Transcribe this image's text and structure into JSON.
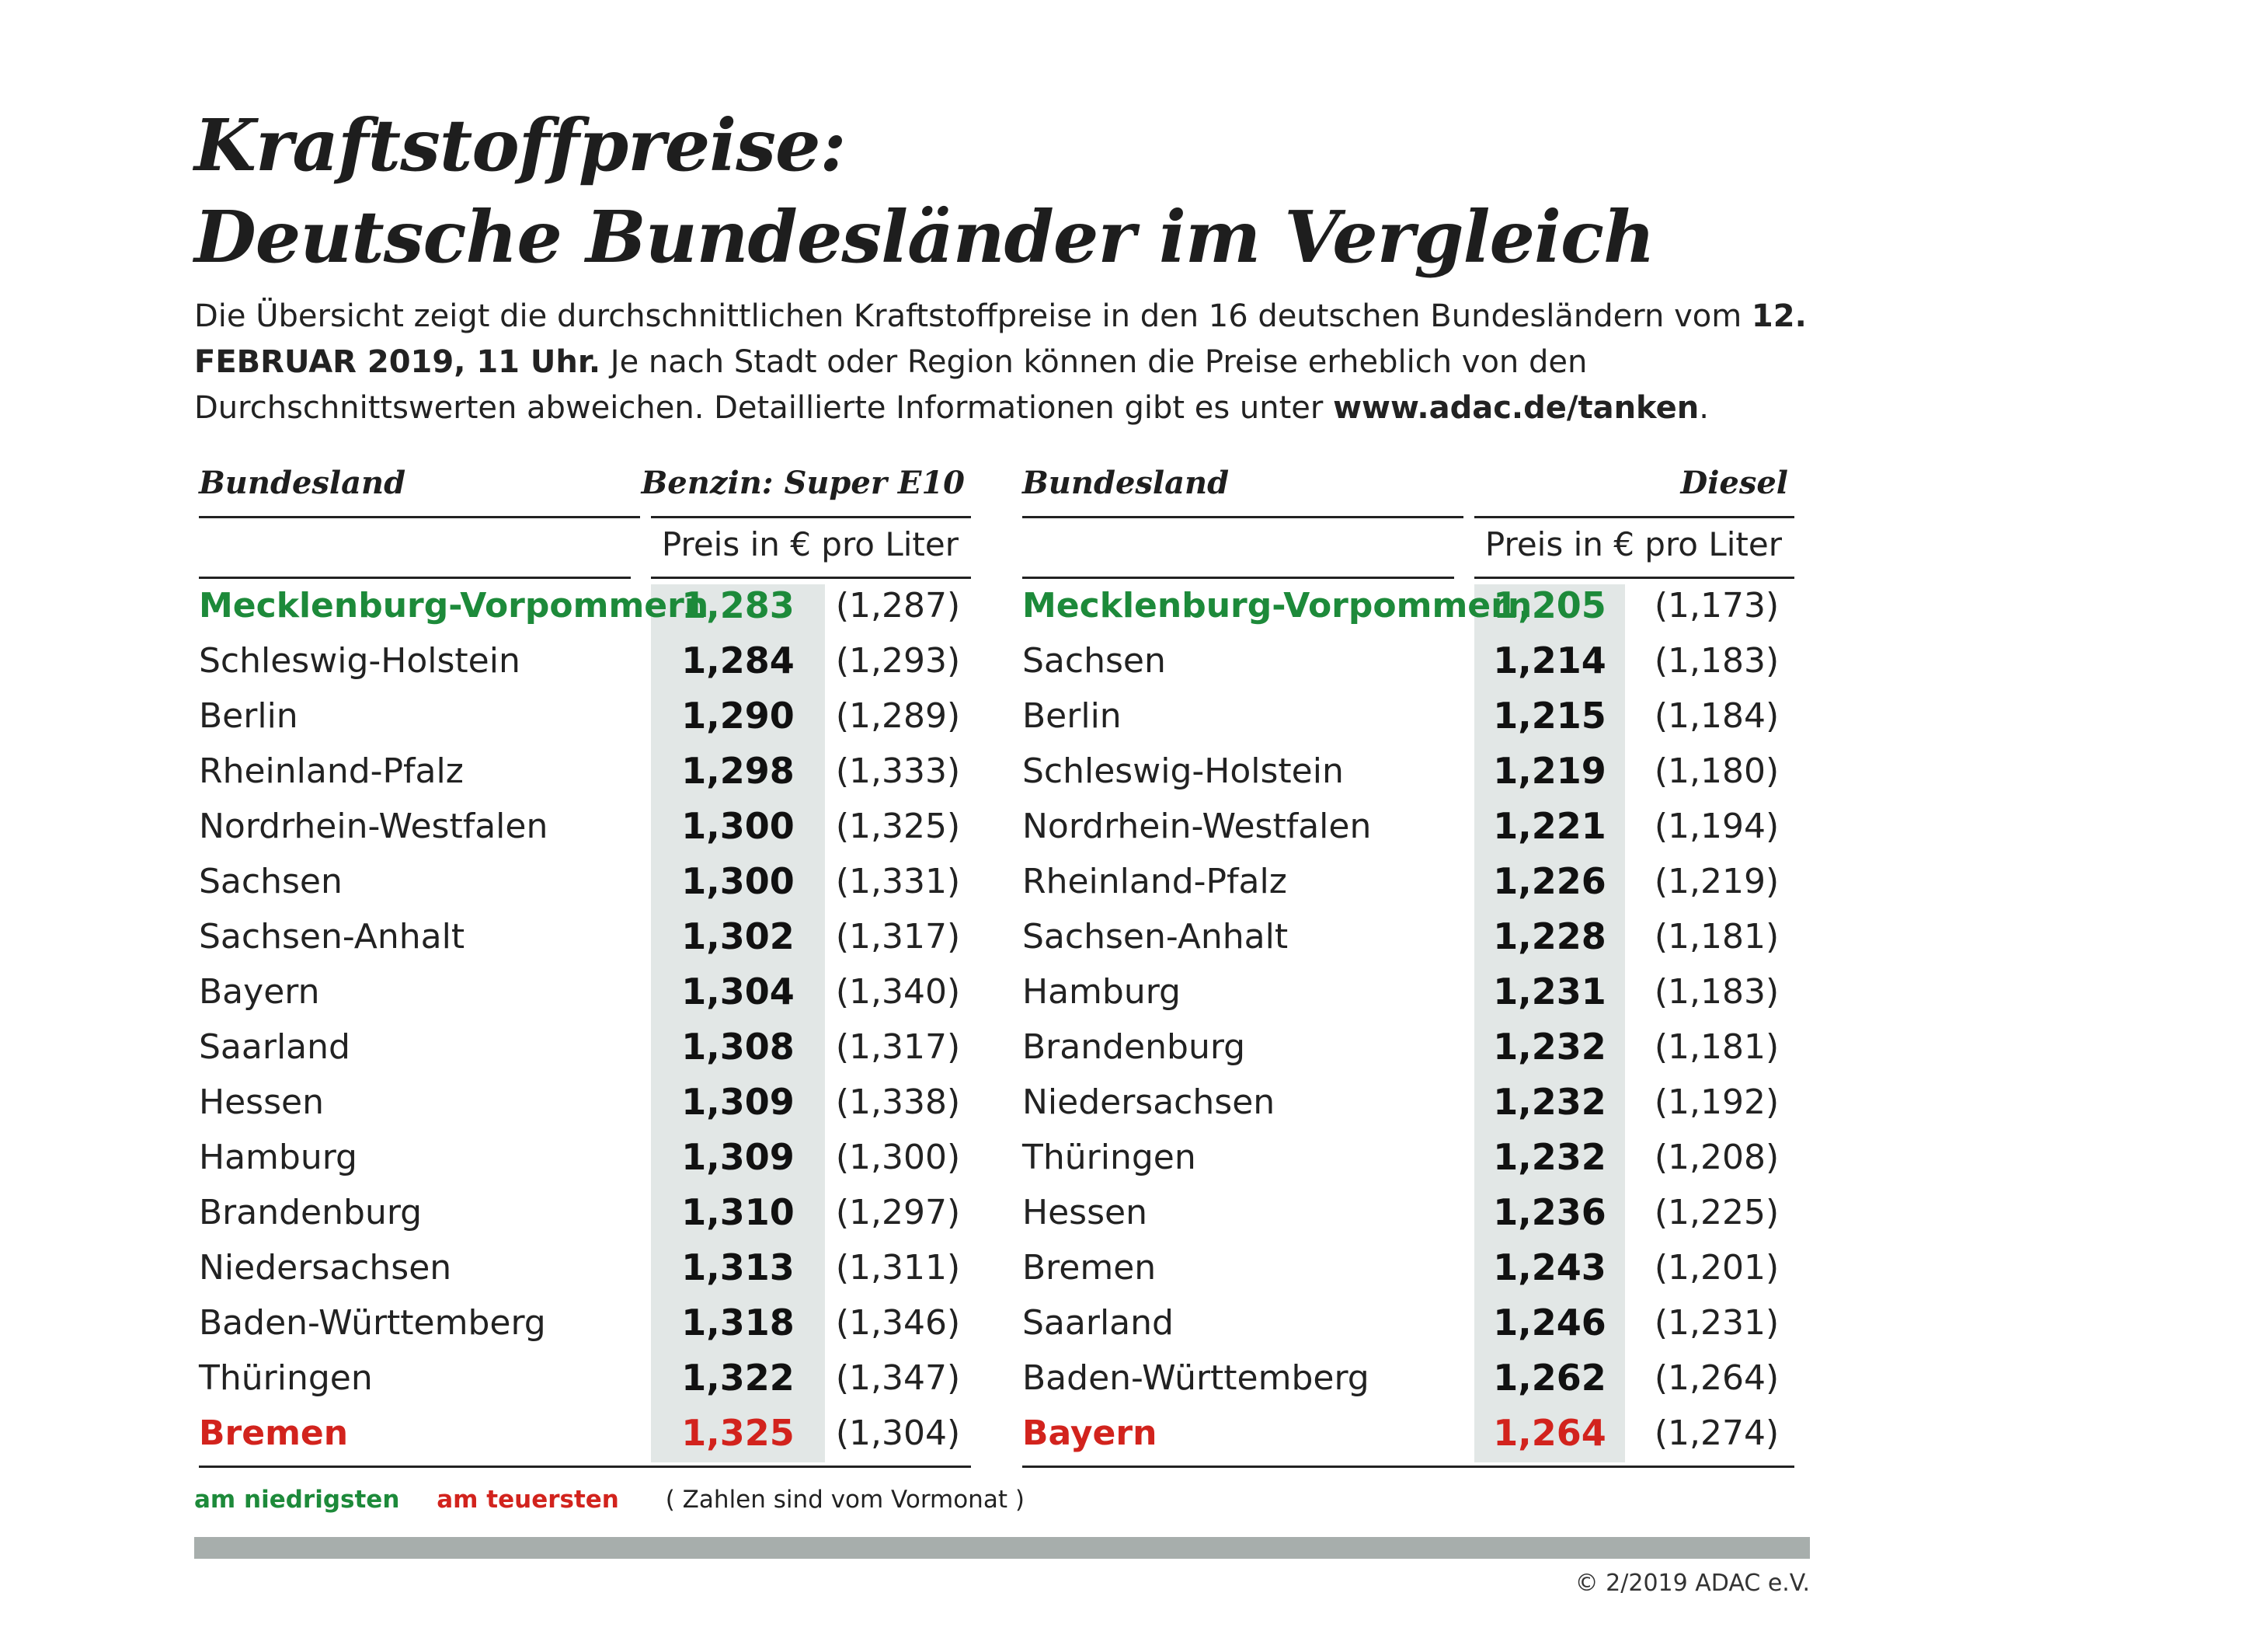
{
  "title": {
    "line1": "Kraftstoffpreise:",
    "line2": "Deutsche Bundesländer im Vergleich"
  },
  "intro": {
    "part1": "Die Übersicht zeigt die durchschnittlichen Kraftstoffpreise in den 16 deutschen Bundesländern vom ",
    "date": "12. FEBRUAR 2019, 11 Uhr.",
    "part2": " Je nach Stadt oder Region können die Preise erheblich von den Durchschnittswerten abweichen. Detaillierte Informationen gibt es unter ",
    "link": "www.adac.de/tanken",
    "part3": "."
  },
  "benzin": {
    "header_land": "Bundesland",
    "header_fuel": "Benzin:  Super E10",
    "unit": "Preis in € pro Liter",
    "rows": [
      {
        "land": "Mecklenburg-Vorpommern",
        "price": "1,283",
        "prev": "(1,287)",
        "status": "lowest"
      },
      {
        "land": "Schleswig-Holstein",
        "price": "1,284",
        "prev": "(1,293)",
        "status": ""
      },
      {
        "land": "Berlin",
        "price": "1,290",
        "prev": "(1,289)",
        "status": ""
      },
      {
        "land": "Rheinland-Pfalz",
        "price": "1,298",
        "prev": "(1,333)",
        "status": ""
      },
      {
        "land": "Nordrhein-Westfalen",
        "price": "1,300",
        "prev": "(1,325)",
        "status": ""
      },
      {
        "land": "Sachsen",
        "price": "1,300",
        "prev": "(1,331)",
        "status": ""
      },
      {
        "land": "Sachsen-Anhalt",
        "price": "1,302",
        "prev": "(1,317)",
        "status": ""
      },
      {
        "land": "Bayern",
        "price": "1,304",
        "prev": "(1,340)",
        "status": ""
      },
      {
        "land": "Saarland",
        "price": "1,308",
        "prev": "(1,317)",
        "status": ""
      },
      {
        "land": "Hessen",
        "price": "1,309",
        "prev": "(1,338)",
        "status": ""
      },
      {
        "land": "Hamburg",
        "price": "1,309",
        "prev": "(1,300)",
        "status": ""
      },
      {
        "land": "Brandenburg",
        "price": "1,310",
        "prev": "(1,297)",
        "status": ""
      },
      {
        "land": "Niedersachsen",
        "price": "1,313",
        "prev": "(1,311)",
        "status": ""
      },
      {
        "land": "Baden-Württemberg",
        "price": "1,318",
        "prev": "(1,346)",
        "status": ""
      },
      {
        "land": "Thüringen",
        "price": "1,322",
        "prev": "(1,347)",
        "status": ""
      },
      {
        "land": "Bremen",
        "price": "1,325",
        "prev": "(1,304)",
        "status": "highest"
      }
    ]
  },
  "diesel": {
    "header_land": "Bundesland",
    "header_fuel": "Diesel",
    "unit": "Preis in € pro Liter",
    "rows": [
      {
        "land": "Mecklenburg-Vorpommern",
        "price": "1,205",
        "prev": "(1,173)",
        "status": "lowest"
      },
      {
        "land": "Sachsen",
        "price": "1,214",
        "prev": "(1,183)",
        "status": ""
      },
      {
        "land": "Berlin",
        "price": "1,215",
        "prev": "(1,184)",
        "status": ""
      },
      {
        "land": "Schleswig-Holstein",
        "price": "1,219",
        "prev": "(1,180)",
        "status": ""
      },
      {
        "land": "Nordrhein-Westfalen",
        "price": "1,221",
        "prev": "(1,194)",
        "status": ""
      },
      {
        "land": "Rheinland-Pfalz",
        "price": "1,226",
        "prev": "(1,219)",
        "status": ""
      },
      {
        "land": "Sachsen-Anhalt",
        "price": "1,228",
        "prev": "(1,181)",
        "status": ""
      },
      {
        "land": "Hamburg",
        "price": "1,231",
        "prev": "(1,183)",
        "status": ""
      },
      {
        "land": "Brandenburg",
        "price": "1,232",
        "prev": "(1,181)",
        "status": ""
      },
      {
        "land": "Niedersachsen",
        "price": "1,232",
        "prev": "(1,192)",
        "status": ""
      },
      {
        "land": "Thüringen",
        "price": "1,232",
        "prev": "(1,208)",
        "status": ""
      },
      {
        "land": "Hessen",
        "price": "1,236",
        "prev": "(1,225)",
        "status": ""
      },
      {
        "land": "Bremen",
        "price": "1,243",
        "prev": "(1,201)",
        "status": ""
      },
      {
        "land": "Saarland",
        "price": "1,246",
        "prev": "(1,231)",
        "status": ""
      },
      {
        "land": "Baden-Württemberg",
        "price": "1,262",
        "prev": "(1,264)",
        "status": ""
      },
      {
        "land": "Bayern",
        "price": "1,264",
        "prev": "(1,274)",
        "status": "highest"
      }
    ]
  },
  "legend": {
    "lowest": "am niedrigsten",
    "highest": "am teuersten",
    "note": "( Zahlen sind vom Vormonat )"
  },
  "colors": {
    "lowest": "#1d8a3a",
    "highest": "#d2231d",
    "column_bg": "#e2e7e6",
    "bar": "#a7aeac"
  },
  "copyright": "© 2/2019 ADAC e.V."
}
